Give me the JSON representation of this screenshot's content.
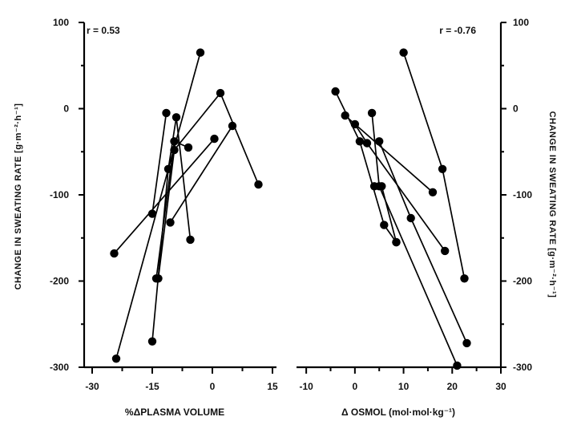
{
  "chart_data": [
    {
      "type": "scatter",
      "panel": "left",
      "xlabel": "%ΔPLASMA VOLUME",
      "ylabel": "CHANGE IN SWEATING RATE [g·m⁻²·h⁻¹]",
      "annotation": "r = 0.53",
      "xlim": [
        -32,
        16
      ],
      "ylim": [
        -300,
        100
      ],
      "xticks": [
        -30,
        -15,
        0,
        15
      ],
      "yticks": [
        100,
        0,
        -100,
        -200,
        -300
      ],
      "grid": false,
      "series": [
        {
          "points": [
            [
              -24,
              -290
            ],
            [
              -3,
              65
            ]
          ]
        },
        {
          "points": [
            [
              -24.5,
              -168
            ],
            [
              0.5,
              -35
            ]
          ]
        },
        {
          "points": [
            [
              -15,
              -270
            ],
            [
              -11,
              -70
            ],
            [
              -9,
              -10
            ],
            [
              -5.5,
              -152
            ]
          ]
        },
        {
          "points": [
            [
              -15,
              -122
            ],
            [
              -11.5,
              -5
            ]
          ]
        },
        {
          "points": [
            [
              -14,
              -197
            ],
            [
              -9.5,
              -38
            ],
            [
              -6,
              -45
            ]
          ]
        },
        {
          "points": [
            [
              -13.5,
              -197
            ],
            [
              -9.5,
              -48
            ],
            [
              2,
              18
            ],
            [
              11.5,
              -88
            ]
          ]
        },
        {
          "points": [
            [
              -10.5,
              -132
            ],
            [
              5,
              -20
            ]
          ]
        }
      ]
    },
    {
      "type": "scatter",
      "panel": "right",
      "xlabel": "Δ OSMOL (mol·mol·kg⁻¹)",
      "ylabel": "CHANGE IN SWEATING RATE [g·m⁻²·h⁻¹]",
      "annotation": "r = -0.76",
      "xlim": [
        -12,
        30
      ],
      "ylim": [
        -300,
        100
      ],
      "xticks": [
        -10,
        0,
        10,
        20,
        30
      ],
      "yticks": [
        100,
        0,
        -100,
        -200,
        -300
      ],
      "grid": false,
      "series": [
        {
          "points": [
            [
              10,
              65
            ],
            [
              18,
              -70
            ],
            [
              22.5,
              -197
            ]
          ]
        },
        {
          "points": [
            [
              -4,
              20
            ],
            [
              1,
              -38
            ],
            [
              6,
              -135
            ],
            [
              8.5,
              -155
            ]
          ]
        },
        {
          "points": [
            [
              -2,
              -8
            ],
            [
              16,
              -97
            ]
          ]
        },
        {
          "points": [
            [
              0,
              -18
            ],
            [
              2.5,
              -40
            ],
            [
              18.5,
              -165
            ]
          ]
        },
        {
          "points": [
            [
              3.5,
              -5
            ],
            [
              5,
              -90
            ],
            [
              21,
              -298
            ]
          ]
        },
        {
          "points": [
            [
              5,
              -38
            ],
            [
              11.5,
              -127
            ],
            [
              23,
              -272
            ]
          ]
        },
        {
          "points": [
            [
              4,
              -90
            ],
            [
              5.5,
              -90
            ],
            [
              8.5,
              -155
            ]
          ]
        }
      ]
    }
  ]
}
